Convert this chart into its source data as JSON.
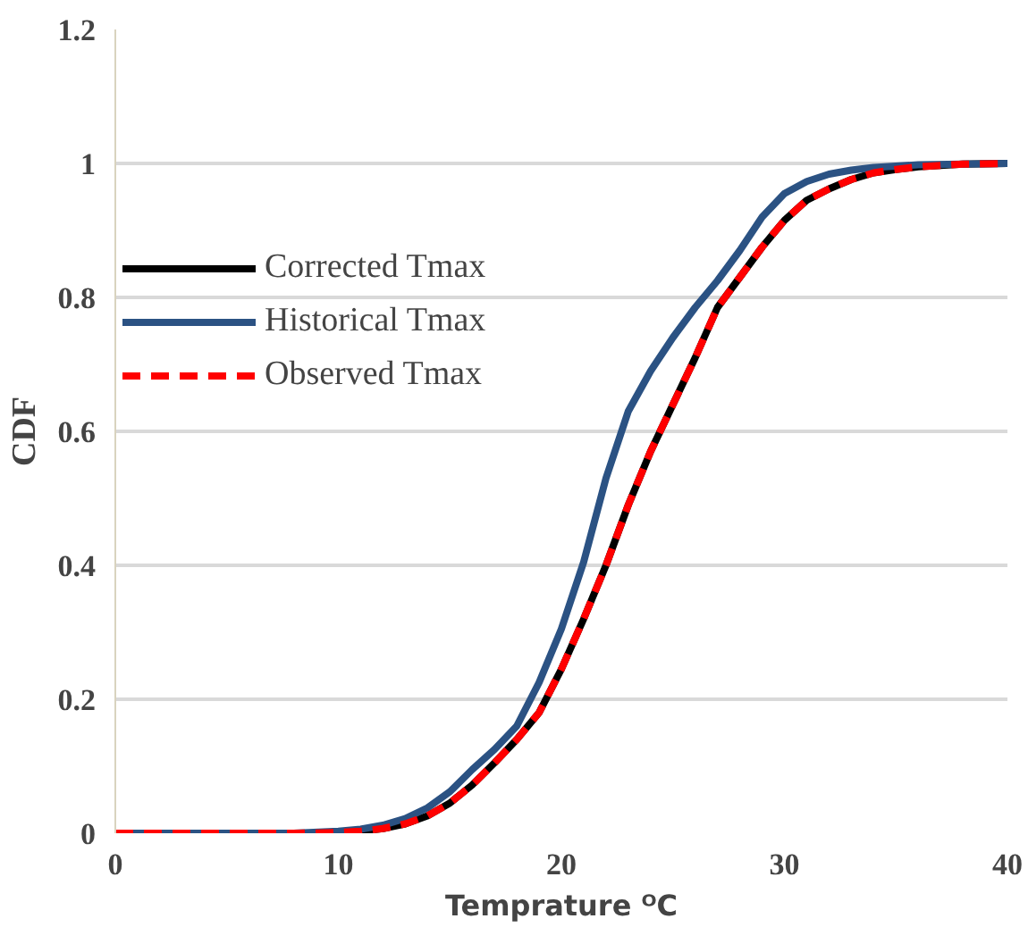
{
  "chart_data": {
    "type": "line",
    "xlabel": "Temprature ᴼC",
    "ylabel": "CDF",
    "x": [
      0,
      2,
      4,
      6,
      8,
      10,
      11,
      12,
      13,
      14,
      15,
      16,
      17,
      18,
      19,
      20,
      21,
      22,
      23,
      24,
      25,
      26,
      27,
      28,
      29,
      30,
      31,
      32,
      33,
      34,
      35,
      36,
      38,
      40
    ],
    "series": [
      {
        "name": "Corrected Tmax",
        "color": "#000000",
        "line_style": "solid",
        "values": [
          null,
          null,
          null,
          null,
          null,
          0.001,
          0.003,
          0.007,
          0.014,
          0.026,
          0.045,
          0.072,
          0.105,
          0.14,
          0.18,
          0.245,
          0.32,
          0.4,
          0.49,
          0.57,
          0.64,
          0.71,
          0.785,
          0.83,
          0.875,
          0.915,
          0.945,
          0.962,
          0.976,
          0.986,
          0.991,
          0.995,
          0.999,
          1
        ]
      },
      {
        "name": "Historical Tmax",
        "color": "#2b5283",
        "line_style": "solid",
        "values": [
          0,
          0,
          0,
          0,
          0,
          0.003,
          0.006,
          0.012,
          0.022,
          0.038,
          0.062,
          0.095,
          0.125,
          0.16,
          0.225,
          0.305,
          0.405,
          0.53,
          0.63,
          0.69,
          0.74,
          0.785,
          0.825,
          0.87,
          0.92,
          0.955,
          0.973,
          0.984,
          0.99,
          0.994,
          0.996,
          0.998,
          0.999,
          1
        ]
      },
      {
        "name": "Observed Tmax",
        "color": "#ff0000",
        "line_style": "dashed",
        "values": [
          0,
          0,
          0,
          0,
          0,
          0.001,
          0.003,
          0.007,
          0.014,
          0.026,
          0.045,
          0.072,
          0.105,
          0.14,
          0.18,
          0.245,
          0.32,
          0.4,
          0.49,
          0.57,
          0.64,
          0.71,
          0.785,
          0.83,
          0.875,
          0.915,
          0.945,
          0.962,
          0.976,
          0.986,
          0.991,
          0.995,
          0.999,
          1
        ]
      }
    ],
    "xlim": [
      0,
      40
    ],
    "xticks": [
      0,
      10,
      20,
      30,
      40
    ],
    "ylim": [
      0,
      1.2
    ],
    "yticks": [
      0,
      0.2,
      0.4,
      0.6,
      0.8,
      1,
      1.2
    ],
    "grid": "y",
    "legend": "top left",
    "marker": "none"
  }
}
